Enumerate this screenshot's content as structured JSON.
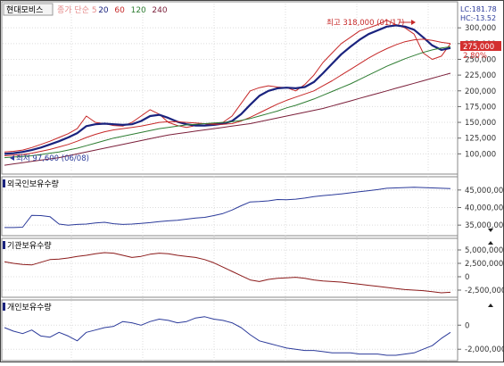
{
  "panels": {
    "price": {
      "title": "현대모비스",
      "ma_legend": [
        {
          "label": "종가 단순 5",
          "color": "#e58a8a"
        },
        {
          "label": "20",
          "color": "#1a237e"
        },
        {
          "label": "60",
          "color": "#c62828"
        },
        {
          "label": "120",
          "color": "#2e7d32"
        },
        {
          "label": "240",
          "color": "#7b1f3a"
        }
      ],
      "lc_label": "LC:181.78",
      "hc_label": "HC:-13.52",
      "high_annotation": "최고 318,000 (01/17)",
      "low_annotation": "최저 97,600 (06/08)",
      "current_price_label": "275,000",
      "change_label": "2.80%"
    },
    "foreign": {
      "title": "외국인보유수량",
      "line_color": "#2b3a9a"
    },
    "institution": {
      "title": "기관보유수량",
      "line_color": "#8b1a1a"
    },
    "individual": {
      "title": "개인보유수량",
      "line_color": "#2b3a9a"
    }
  },
  "chart_data": [
    {
      "type": "line",
      "title": "현대모비스",
      "y_ticks": [
        "300,000",
        "275,000",
        "250,000",
        "225,000",
        "200,000",
        "175,000",
        "150,000",
        "125,000",
        "100,000"
      ],
      "ylim": [
        75000,
        330000
      ],
      "series": [
        {
          "name": "종가",
          "color": "#c62828",
          "values": [
            103000,
            104000,
            106000,
            110000,
            115000,
            120000,
            126000,
            132000,
            140000,
            160000,
            150000,
            148000,
            145000,
            144000,
            150000,
            160000,
            170000,
            163000,
            150000,
            145000,
            142000,
            145000,
            146000,
            148000,
            150000,
            160000,
            180000,
            200000,
            205000,
            208000,
            206000,
            205000,
            200000,
            210000,
            225000,
            245000,
            260000,
            275000,
            285000,
            295000,
            300000,
            305000,
            312000,
            305000,
            300000,
            290000,
            260000,
            250000,
            255000,
            275000
          ]
        },
        {
          "name": "20",
          "color": "#1a237e",
          "values": [
            100000,
            101000,
            103000,
            106000,
            110000,
            115000,
            120000,
            126000,
            133000,
            144000,
            147000,
            148000,
            147000,
            146000,
            147000,
            152000,
            160000,
            162000,
            157000,
            151000,
            147000,
            145000,
            145000,
            146000,
            148000,
            152000,
            163000,
            178000,
            192000,
            200000,
            204000,
            205000,
            204000,
            206000,
            214000,
            228000,
            243000,
            258000,
            270000,
            281000,
            290000,
            296000,
            302000,
            304000,
            302000,
            297000,
            285000,
            272000,
            265000,
            268000
          ]
        },
        {
          "name": "60",
          "color": "#c62828",
          "values": [
            97000,
            98000,
            99000,
            101000,
            104000,
            107000,
            111000,
            115000,
            120000,
            126000,
            131000,
            135000,
            138000,
            140000,
            142000,
            144000,
            147000,
            150000,
            151000,
            151000,
            150000,
            149000,
            148000,
            147000,
            147000,
            148000,
            152000,
            158000,
            165000,
            172000,
            179000,
            185000,
            190000,
            195000,
            200000,
            208000,
            216000,
            225000,
            234000,
            243000,
            252000,
            260000,
            267000,
            273000,
            278000,
            281000,
            282000,
            280000,
            277000,
            275000
          ]
        },
        {
          "name": "120",
          "color": "#2e7d32",
          "values": [
            94000,
            95000,
            96000,
            97000,
            99000,
            101000,
            103000,
            106000,
            109000,
            113000,
            117000,
            121000,
            125000,
            128000,
            131000,
            134000,
            137000,
            140000,
            142000,
            144000,
            146000,
            147000,
            148000,
            149000,
            150000,
            151000,
            153000,
            156000,
            160000,
            164000,
            168000,
            173000,
            177000,
            182000,
            187000,
            193000,
            199000,
            205000,
            211000,
            218000,
            225000,
            232000,
            239000,
            245000,
            251000,
            256000,
            261000,
            265000,
            268000,
            270000
          ]
        },
        {
          "name": "240",
          "color": "#7b1f3a",
          "values": [
            82000,
            84000,
            86000,
            88000,
            90000,
            92000,
            94000,
            97000,
            100000,
            103000,
            106000,
            109000,
            112000,
            115000,
            118000,
            121000,
            124000,
            127000,
            130000,
            132000,
            134000,
            136000,
            138000,
            140000,
            142000,
            144000,
            146000,
            148000,
            151000,
            154000,
            157000,
            160000,
            163000,
            166000,
            169000,
            172000,
            176000,
            180000,
            184000,
            188000,
            192000,
            196000,
            200000,
            204000,
            208000,
            212000,
            216000,
            220000,
            224000,
            228000
          ]
        }
      ]
    },
    {
      "type": "line",
      "title": "외국인보유수량",
      "y_ticks": [
        "45,000,000",
        "40,000,000",
        "35,000,000"
      ],
      "ylim": [
        32500000,
        47500000
      ],
      "series": [
        {
          "name": "외국인보유수량",
          "values": [
            34300000,
            34300000,
            34400000,
            37800000,
            37700000,
            37400000,
            35300000,
            35000000,
            35200000,
            35300000,
            35600000,
            35800000,
            35400000,
            35200000,
            35300000,
            35500000,
            35700000,
            36000000,
            36200000,
            36400000,
            36700000,
            37000000,
            37200000,
            37700000,
            38300000,
            39300000,
            40500000,
            41600000,
            41700000,
            41900000,
            42300000,
            42200000,
            42400000,
            42700000,
            43100000,
            43400000,
            43600000,
            43900000,
            44200000,
            44500000,
            44800000,
            45100000,
            45500000,
            45600000,
            45700000,
            45800000,
            45700000,
            45600000,
            45500000,
            45400000
          ]
        }
      ]
    },
    {
      "type": "line",
      "title": "기관보유수량",
      "y_ticks": [
        "5,000,000",
        "2,500,000",
        "0",
        "-2,500,000"
      ],
      "ylim": [
        -3500000,
        6500000
      ],
      "series": [
        {
          "name": "기관보유수량",
          "values": [
            2800000,
            2500000,
            2300000,
            2200000,
            2700000,
            3200000,
            3300000,
            3500000,
            3800000,
            4000000,
            4300000,
            4500000,
            4400000,
            4000000,
            3600000,
            3800000,
            4200000,
            4400000,
            4300000,
            4000000,
            3800000,
            3600000,
            3200000,
            2600000,
            1800000,
            1000000,
            200000,
            -600000,
            -900000,
            -500000,
            -300000,
            -200000,
            -100000,
            -300000,
            -600000,
            -800000,
            -900000,
            -1000000,
            -1200000,
            -1400000,
            -1600000,
            -1800000,
            -2000000,
            -2200000,
            -2400000,
            -2500000,
            -2600000,
            -2800000,
            -3000000,
            -2900000
          ]
        }
      ]
    },
    {
      "type": "line",
      "title": "개인보유수량",
      "y_ticks": [
        "0",
        "-2,000,000"
      ],
      "ylim": [
        -2800000,
        1800000
      ],
      "series": [
        {
          "name": "개인보유수량",
          "values": [
            -200000,
            -500000,
            -700000,
            -400000,
            -900000,
            -1000000,
            -600000,
            -900000,
            -1300000,
            -600000,
            -400000,
            -200000,
            -100000,
            300000,
            200000,
            0,
            300000,
            500000,
            400000,
            200000,
            300000,
            600000,
            700000,
            500000,
            400000,
            200000,
            -200000,
            -800000,
            -1300000,
            -1500000,
            -1700000,
            -1900000,
            -2000000,
            -2100000,
            -2100000,
            -2200000,
            -2300000,
            -2300000,
            -2300000,
            -2400000,
            -2400000,
            -2400000,
            -2500000,
            -2500000,
            -2400000,
            -2300000,
            -2000000,
            -1700000,
            -1100000,
            -600000
          ]
        }
      ]
    }
  ]
}
